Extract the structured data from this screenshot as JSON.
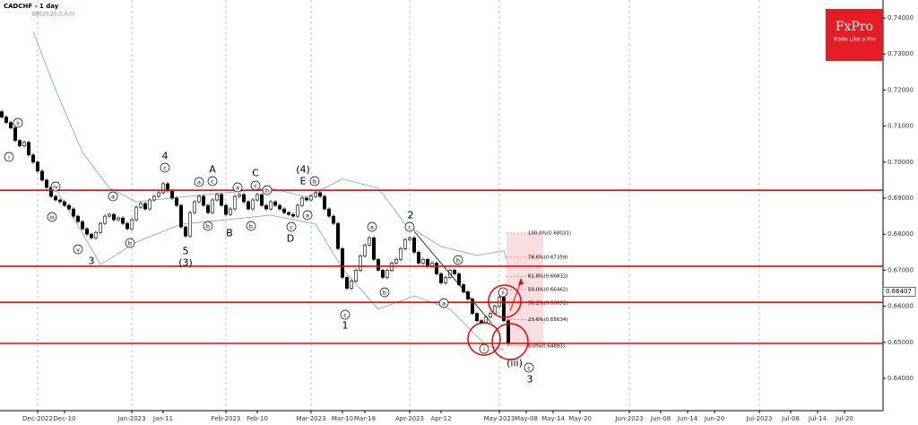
{
  "header": {
    "title": "CADCHF - 1 day",
    "indicator": "BB(20,20,2,0,0)"
  },
  "logo": {
    "brand": "FxPro",
    "tagline": "Trade Like a Pro"
  },
  "chart_data": {
    "type": "candlestick",
    "xlim": [
      -0.4,
      196.6
    ],
    "xticks": [
      {
        "value": 8,
        "label": "Dec-2022"
      },
      {
        "value": 14,
        "label": "Dec-10"
      },
      {
        "value": 29,
        "label": "Jan-2023"
      },
      {
        "value": 36,
        "label": "Jan-11"
      },
      {
        "value": 50,
        "label": "Feb-2023"
      },
      {
        "value": 57,
        "label": "Feb-10"
      },
      {
        "value": 69,
        "label": "Mar-2023"
      },
      {
        "value": 76,
        "label": "Mar-10"
      },
      {
        "value": 81,
        "label": "Mar-18"
      },
      {
        "value": 91,
        "label": "Apr-2023"
      },
      {
        "value": 98,
        "label": "Apr-12"
      },
      {
        "value": 111,
        "label": "May-2023"
      },
      {
        "value": 117,
        "label": "May-08"
      },
      {
        "value": 123,
        "label": "May-14"
      },
      {
        "value": 129,
        "label": "May-20"
      },
      {
        "value": 140,
        "label": "Jun-2023"
      },
      {
        "value": 147,
        "label": "Jun-08"
      },
      {
        "value": 153,
        "label": "Jun-14"
      },
      {
        "value": 159,
        "label": "Jun-20"
      },
      {
        "value": 169,
        "label": "Jul-2023"
      },
      {
        "value": 176,
        "label": "Jul-08"
      },
      {
        "value": 182,
        "label": "Jul-14"
      },
      {
        "value": 188,
        "label": "Jul-20"
      }
    ],
    "ylim": [
      0.63104,
      0.74498
    ],
    "yticks": [
      {
        "value": 0.74,
        "label": "0.74000"
      },
      {
        "value": 0.73,
        "label": "0.73000"
      },
      {
        "value": 0.72,
        "label": "0.72000"
      },
      {
        "value": 0.71,
        "label": "0.71000"
      },
      {
        "value": 0.7,
        "label": "0.70000"
      },
      {
        "value": 0.69,
        "label": "0.69000"
      },
      {
        "value": 0.68,
        "label": "0.68000"
      },
      {
        "value": 0.67,
        "label": "0.67000"
      },
      {
        "value": 0.66,
        "label": "0.66000"
      },
      {
        "value": 0.65,
        "label": "0.65000"
      },
      {
        "value": 0.64,
        "label": "0.64000"
      }
    ],
    "x": [
      0,
      1,
      2,
      3,
      4,
      5,
      6,
      7,
      8,
      9,
      10,
      11,
      12,
      13,
      14,
      15,
      16,
      17,
      18,
      19,
      20,
      21,
      22,
      23,
      24,
      25,
      26,
      27,
      28,
      29,
      30,
      31,
      32,
      33,
      34,
      35,
      36,
      37,
      38,
      39,
      40,
      41,
      42,
      43,
      44,
      45,
      46,
      47,
      48,
      49,
      50,
      51,
      52,
      53,
      54,
      55,
      56,
      57,
      58,
      59,
      60,
      61,
      62,
      63,
      64,
      65,
      66,
      67,
      68,
      69,
      70,
      71,
      72,
      73,
      74,
      75,
      76,
      77,
      78,
      79,
      80,
      81,
      82,
      83,
      84,
      85,
      86,
      87,
      88,
      89,
      90,
      91,
      92,
      93,
      94,
      95,
      96,
      97,
      98,
      99,
      100,
      101,
      102,
      103,
      104,
      105,
      106,
      107,
      108,
      109,
      110,
      111,
      112,
      113
    ],
    "open": [
      0.714,
      0.7125,
      0.711,
      0.7095,
      0.706,
      0.7045,
      0.7055,
      0.702,
      0.7,
      0.6975,
      0.695,
      0.693,
      0.6905,
      0.6895,
      0.689,
      0.688,
      0.687,
      0.685,
      0.6835,
      0.6815,
      0.68,
      0.679,
      0.6805,
      0.683,
      0.685,
      0.6855,
      0.684,
      0.6845,
      0.683,
      0.6815,
      0.684,
      0.6875,
      0.6885,
      0.687,
      0.6895,
      0.6905,
      0.6915,
      0.694,
      0.692,
      0.69,
      0.688,
      0.682,
      0.6795,
      0.686,
      0.689,
      0.6905,
      0.688,
      0.686,
      0.6895,
      0.691,
      0.688,
      0.6855,
      0.687,
      0.6905,
      0.691,
      0.689,
      0.687,
      0.6895,
      0.691,
      0.688,
      0.687,
      0.689,
      0.688,
      0.687,
      0.686,
      0.6855,
      0.685,
      0.688,
      0.69,
      0.6895,
      0.6905,
      0.6915,
      0.6905,
      0.687,
      0.685,
      0.683,
      0.676,
      0.668,
      0.665,
      0.667,
      0.67,
      0.674,
      0.677,
      0.679,
      0.673,
      0.67,
      0.668,
      0.67,
      0.672,
      0.673,
      0.676,
      0.6785,
      0.679,
      0.675,
      0.672,
      0.673,
      0.671,
      0.672,
      0.669,
      0.6665,
      0.668,
      0.67,
      0.669,
      0.666,
      0.664,
      0.662,
      0.658,
      0.656,
      0.6555,
      0.657,
      0.658,
      0.66,
      0.6625,
      0.656
    ],
    "close": [
      0.7125,
      0.711,
      0.7095,
      0.706,
      0.7045,
      0.7055,
      0.702,
      0.7,
      0.6975,
      0.695,
      0.693,
      0.6905,
      0.6895,
      0.689,
      0.688,
      0.687,
      0.685,
      0.6835,
      0.6815,
      0.68,
      0.679,
      0.6805,
      0.683,
      0.685,
      0.6855,
      0.684,
      0.6845,
      0.683,
      0.6815,
      0.684,
      0.6875,
      0.6885,
      0.687,
      0.6895,
      0.6905,
      0.6915,
      0.694,
      0.692,
      0.69,
      0.688,
      0.682,
      0.6795,
      0.686,
      0.689,
      0.6905,
      0.688,
      0.686,
      0.6895,
      0.691,
      0.688,
      0.6855,
      0.687,
      0.6905,
      0.691,
      0.689,
      0.687,
      0.6895,
      0.691,
      0.688,
      0.687,
      0.689,
      0.688,
      0.687,
      0.686,
      0.6855,
      0.685,
      0.688,
      0.69,
      0.6895,
      0.6905,
      0.6915,
      0.6905,
      0.687,
      0.685,
      0.683,
      0.676,
      0.668,
      0.665,
      0.667,
      0.67,
      0.674,
      0.677,
      0.679,
      0.673,
      0.67,
      0.668,
      0.67,
      0.672,
      0.673,
      0.676,
      0.6785,
      0.679,
      0.675,
      0.672,
      0.673,
      0.671,
      0.672,
      0.669,
      0.6665,
      0.668,
      0.67,
      0.669,
      0.666,
      0.664,
      0.662,
      0.658,
      0.656,
      0.6555,
      0.657,
      0.658,
      0.66,
      0.6625,
      0.656,
      0.6497
    ],
    "up_color": "#ffffff",
    "down_color": "#000000",
    "bands": {
      "color": "#7fb5a8",
      "upper": {
        "x": [
          7,
          12,
          18,
          24,
          30,
          40,
          50,
          60,
          68,
          76,
          84,
          90,
          98,
          106,
          112,
          113
        ],
        "values": [
          0.7362,
          0.7201,
          0.7027,
          0.6928,
          0.689,
          0.6903,
          0.6915,
          0.6928,
          0.6903,
          0.6953,
          0.6928,
          0.6828,
          0.6766,
          0.6741,
          0.6754,
          0.6716
        ]
      },
      "lower": {
        "x": [
          12,
          18,
          22,
          30,
          40,
          50,
          60,
          70,
          76,
          84,
          92,
          100,
          108,
          112
        ],
        "values": [
          0.6927,
          0.6803,
          0.6716,
          0.6778,
          0.6828,
          0.684,
          0.6853,
          0.6828,
          0.6704,
          0.6592,
          0.6629,
          0.6592,
          0.6492,
          0.648
        ]
      }
    },
    "levels": {
      "color": "#ff0000",
      "values": [
        0.6922,
        0.6711,
        0.6611,
        0.6497
      ]
    },
    "fibonacci": [
      {
        "value": 0.68031,
        "label": "100.0%(0.68031)"
      },
      {
        "value": 0.67359,
        "label": "78.6%(0.67359)"
      },
      {
        "value": 0.66832,
        "label": "61.8%(0.66832)"
      },
      {
        "value": 0.66462,
        "label": "50.0%(0.66462)"
      },
      {
        "value": 0.66092,
        "label": "38.2%(0.66092)"
      },
      {
        "value": 0.65634,
        "label": "23.6%(0.65634)"
      },
      {
        "value": 0.64893,
        "label": "0.0%(0.64893)"
      }
    ],
    "current_price": 0.66407,
    "annotations": [
      {
        "text": "ii",
        "circled": true
      },
      {
        "text": "i",
        "circled": true
      },
      {
        "text": "iv",
        "circled": true
      },
      {
        "text": "iii",
        "circled": true
      },
      {
        "text": "v",
        "circled": true
      },
      {
        "text": "3",
        "circled": false
      },
      {
        "text": "a",
        "circled": true
      },
      {
        "text": "b",
        "circled": true
      },
      {
        "text": "c",
        "circled": true
      },
      {
        "text": "4",
        "circled": false
      },
      {
        "text": "5",
        "circled": false
      },
      {
        "text": "(3)",
        "circled": false
      },
      {
        "text": "a",
        "circled": true
      },
      {
        "text": "b",
        "circled": true
      },
      {
        "text": "c",
        "circled": true
      },
      {
        "text": "A",
        "circled": false
      },
      {
        "text": "B",
        "circled": false
      },
      {
        "text": "a",
        "circled": true
      },
      {
        "text": "b",
        "circled": true
      },
      {
        "text": "c",
        "circled": true
      },
      {
        "text": "C",
        "circled": false
      },
      {
        "text": "b",
        "circled": true
      },
      {
        "text": "a",
        "circled": true
      },
      {
        "text": "b",
        "circled": true
      },
      {
        "text": "(4)",
        "circled": false
      },
      {
        "text": "E",
        "circled": false
      },
      {
        "text": "c",
        "circled": true
      },
      {
        "text": "D",
        "circled": false
      },
      {
        "text": "a",
        "circled": true
      },
      {
        "text": "b",
        "circled": true
      },
      {
        "text": "c",
        "circled": true
      },
      {
        "text": "1",
        "circled": false
      },
      {
        "text": "c",
        "circled": true
      },
      {
        "text": "2",
        "circled": false
      },
      {
        "text": "b",
        "circled": true
      },
      {
        "text": "a",
        "circled": true
      },
      {
        "text": "i",
        "circled": true
      },
      {
        "text": "ii",
        "circled": true
      },
      {
        "text": "(iii)",
        "circled": false
      },
      {
        "text": "c",
        "circled": true
      },
      {
        "text": "3",
        "circled": false
      }
    ]
  }
}
